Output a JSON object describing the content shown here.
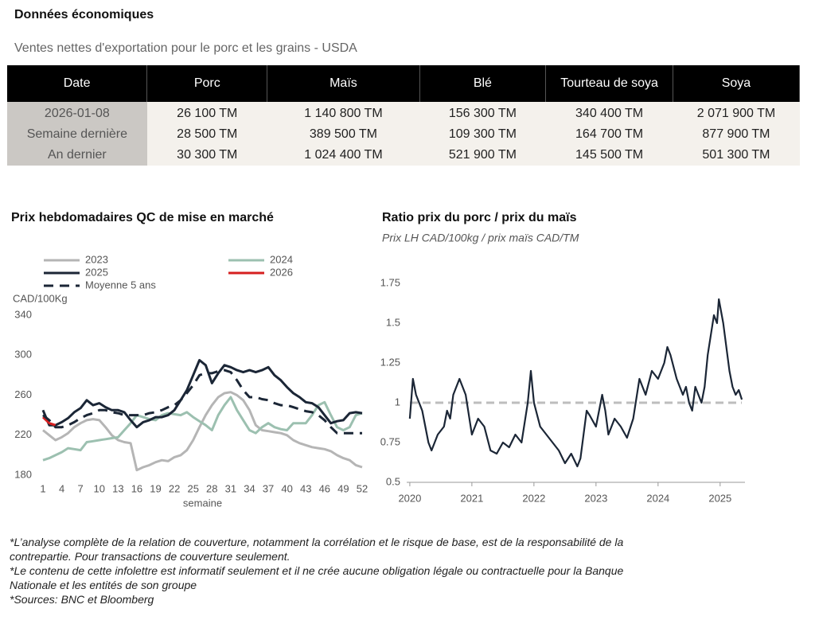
{
  "header": {
    "title": "Données économiques",
    "subtitle": "Ventes nettes d'exportation pour le porc et les grains - USDA"
  },
  "table": {
    "columns": [
      "Date",
      "Porc",
      "Maïs",
      "Blé",
      "Tourteau de soya",
      "Soya"
    ],
    "rows": [
      [
        "2026-01-08",
        "26 100 TM",
        "1 140 800 TM",
        "156 300 TM",
        "340 400 TM",
        "2 071 900 TM"
      ],
      [
        "Semaine dernière",
        "28 500 TM",
        "389 500 TM",
        "109 300 TM",
        "164 700 TM",
        "877 900 TM"
      ],
      [
        "An dernier",
        "30 300 TM",
        "1 024 400 TM",
        "521 900 TM",
        "145 500 TM",
        "501 300 TM"
      ]
    ]
  },
  "chart_data": [
    {
      "type": "line",
      "title": "Prix hebdomadaires QC de mise en marché",
      "y_label": "CAD/100Kg",
      "x_label": "semaine",
      "legend": true,
      "x": [
        1,
        2,
        3,
        4,
        5,
        6,
        7,
        8,
        9,
        10,
        11,
        12,
        13,
        14,
        15,
        16,
        17,
        18,
        19,
        20,
        21,
        22,
        23,
        24,
        25,
        26,
        27,
        28,
        29,
        30,
        31,
        32,
        33,
        34,
        35,
        36,
        37,
        38,
        39,
        40,
        41,
        42,
        43,
        44,
        45,
        46,
        47,
        48,
        49,
        50,
        51,
        52
      ],
      "xlim": [
        1,
        52
      ],
      "xticks": [
        1,
        4,
        7,
        10,
        13,
        16,
        19,
        22,
        25,
        28,
        31,
        34,
        37,
        40,
        43,
        46,
        49,
        52
      ],
      "ylim": [
        180,
        340
      ],
      "yticks": [
        180,
        220,
        260,
        300,
        340
      ],
      "series": [
        {
          "name": "2023",
          "color": "#b5b5b5",
          "line_style": "solid",
          "values": [
            225,
            220,
            215,
            218,
            222,
            228,
            232,
            235,
            236,
            235,
            228,
            220,
            215,
            213,
            212,
            185,
            188,
            190,
            193,
            195,
            194,
            198,
            200,
            205,
            215,
            228,
            240,
            250,
            258,
            262,
            263,
            260,
            255,
            245,
            230,
            225,
            224,
            223,
            222,
            220,
            215,
            212,
            210,
            208,
            207,
            206,
            204,
            200,
            197,
            195,
            190,
            188
          ]
        },
        {
          "name": "2024",
          "color": "#9cc0b0",
          "line_style": "solid",
          "values": [
            195,
            197,
            200,
            203,
            207,
            206,
            205,
            213,
            214,
            215,
            216,
            217,
            218,
            225,
            232,
            240,
            238,
            236,
            235,
            240,
            242,
            241,
            240,
            243,
            238,
            234,
            230,
            225,
            240,
            250,
            258,
            245,
            235,
            225,
            222,
            228,
            232,
            228,
            226,
            225,
            232,
            232,
            232,
            240,
            250,
            253,
            240,
            228,
            225,
            228,
            240,
            242
          ]
        },
        {
          "name": "2025",
          "color": "#1b2636",
          "line_style": "solid",
          "values": [
            245,
            230,
            230,
            233,
            237,
            243,
            247,
            255,
            250,
            252,
            248,
            245,
            245,
            243,
            235,
            228,
            233,
            235,
            238,
            238,
            240,
            245,
            255,
            265,
            280,
            295,
            290,
            272,
            282,
            290,
            288,
            285,
            283,
            285,
            283,
            285,
            288,
            280,
            275,
            268,
            262,
            258,
            253,
            252,
            248,
            240,
            232,
            234,
            235,
            242,
            243,
            242
          ]
        },
        {
          "name": "2026",
          "color": "#d62020",
          "line_style": "solid",
          "values": [
            238,
            232,
            230,
            null,
            null,
            null,
            null,
            null,
            null,
            null,
            null,
            null,
            null,
            null,
            null,
            null,
            null,
            null,
            null,
            null,
            null,
            null,
            null,
            null,
            null,
            null,
            null,
            null,
            null,
            null,
            null,
            null,
            null,
            null,
            null,
            null,
            null,
            null,
            null,
            null,
            null,
            null,
            null,
            null,
            null,
            null,
            null,
            null,
            null,
            null,
            null,
            null
          ]
        },
        {
          "name": "Moyenne 5 ans",
          "color": "#1b2636",
          "line_style": "dashed",
          "values": [
            240,
            235,
            228,
            228,
            230,
            233,
            237,
            240,
            242,
            245,
            245,
            243,
            242,
            240,
            240,
            240,
            240,
            242,
            243,
            245,
            248,
            250,
            255,
            262,
            270,
            280,
            282,
            282,
            284,
            285,
            283,
            275,
            265,
            258,
            258,
            256,
            255,
            252,
            250,
            250,
            248,
            246,
            244,
            243,
            240,
            235,
            228,
            222,
            222,
            222,
            222,
            222
          ]
        }
      ]
    },
    {
      "type": "line",
      "title": "Ratio prix du porc / prix du maïs",
      "subtitle": "Prix LH CAD/100kg / prix maïs CAD/TM",
      "legend": false,
      "x": [
        2020,
        2020.05,
        2020.1,
        2020.2,
        2020.3,
        2020.35,
        2020.45,
        2020.55,
        2020.6,
        2020.65,
        2020.7,
        2020.8,
        2020.9,
        2021,
        2021.1,
        2021.2,
        2021.3,
        2021.4,
        2021.5,
        2021.6,
        2021.7,
        2021.8,
        2021.9,
        2021.95,
        2022,
        2022.1,
        2022.2,
        2022.3,
        2022.4,
        2022.5,
        2022.6,
        2022.7,
        2022.75,
        2022.8,
        2022.85,
        2022.9,
        2023,
        2023.1,
        2023.15,
        2023.2,
        2023.3,
        2023.4,
        2023.5,
        2023.6,
        2023.7,
        2023.8,
        2023.9,
        2024,
        2024.1,
        2024.15,
        2024.2,
        2024.3,
        2024.4,
        2024.45,
        2024.5,
        2024.55,
        2024.6,
        2024.7,
        2024.75,
        2024.8,
        2024.9,
        2024.95,
        2024.98,
        2025.05,
        2025.1,
        2025.15,
        2025.2,
        2025.25,
        2025.3,
        2025.35
      ],
      "values": [
        0.9,
        1.15,
        1.05,
        0.95,
        0.75,
        0.7,
        0.8,
        0.85,
        0.95,
        0.9,
        1.05,
        1.15,
        1.05,
        0.8,
        0.9,
        0.85,
        0.7,
        0.68,
        0.75,
        0.72,
        0.8,
        0.75,
        1,
        1.2,
        1,
        0.85,
        0.8,
        0.75,
        0.7,
        0.62,
        0.68,
        0.6,
        0.65,
        0.8,
        0.95,
        0.92,
        0.85,
        1.05,
        0.95,
        0.8,
        0.9,
        0.85,
        0.78,
        0.9,
        1.15,
        1.05,
        1.2,
        1.15,
        1.25,
        1.35,
        1.3,
        1.15,
        1.05,
        1.1,
        1,
        0.95,
        1.1,
        1,
        1.1,
        1.3,
        1.55,
        1.5,
        1.65,
        1.5,
        1.35,
        1.2,
        1.1,
        1.05,
        1.08,
        1.02
      ],
      "color": "#1b2636",
      "reference_value": 1,
      "reference_color": "#bdbdbd",
      "xlim": [
        2019.95,
        2025.4
      ],
      "xticks": [
        2020,
        2021,
        2022,
        2023,
        2024,
        2025
      ],
      "ylim": [
        0.5,
        1.75
      ],
      "yticks": [
        0.5,
        0.75,
        1,
        1.25,
        1.5,
        1.75
      ]
    }
  ],
  "notes": [
    "*L’analyse complète de la relation de couverture, notamment la corrélation et le risque de base, est de la responsabilité de la contrepartie. Pour transactions de couverture seulement.",
    "*Le contenu de cette infolettre est informatif seulement et il ne crée aucune obligation légale ou contractuelle pour la Banque Nationale et les entités de son groupe",
    "*Sources: BNC et Bloomberg"
  ]
}
